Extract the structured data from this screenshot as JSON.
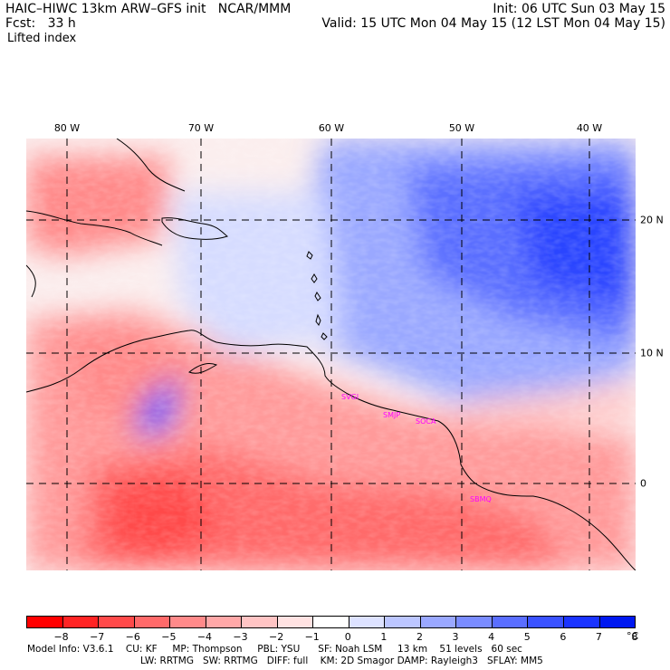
{
  "header": {
    "line1_left": "HAIC–HIWC 13km ARW–GFS init   NCAR/MMM",
    "line1_right": "Init: 06 UTC Sun 03 May 15",
    "line2_left": "Fcst:   33 h",
    "line2_right": "Valid: 15 UTC Mon 04 May 15 (12 LST Mon 04 May 15)",
    "field_name": "Lifted index"
  },
  "map": {
    "longitude_labels": [
      "80 W",
      "70 W",
      "60 W",
      "50 W",
      "40 W"
    ],
    "longitudes": [
      -80,
      -70,
      -60,
      -50,
      -40
    ],
    "latitude_labels": [
      "20 N",
      "10 N",
      "0"
    ],
    "latitudes": [
      20,
      10,
      0
    ],
    "lon_range": [
      -83,
      -36.5
    ],
    "lat_range": [
      -6.5,
      26.5
    ],
    "station_labels": [
      "SVGI",
      "SMJP",
      "SOCA",
      "SBMQ"
    ]
  },
  "colorbar": {
    "colors": [
      "#ff0000",
      "#ff2424",
      "#ff4a4a",
      "#ff6a6a",
      "#ff8a8a",
      "#ffa8a8",
      "#ffc4c4",
      "#ffe2e2",
      "#ffffff",
      "#dde2ff",
      "#bcc6ff",
      "#9aa8ff",
      "#7a8cff",
      "#5a6eff",
      "#3a52ff",
      "#1a34ff",
      "#0018f0"
    ],
    "tick_labels": [
      "−8",
      "−7",
      "−6",
      "−5",
      "−4",
      "−3",
      "−2",
      "−1",
      "0",
      "1",
      "2",
      "3",
      "4",
      "5",
      "6",
      "7",
      "8"
    ],
    "unit": "°C"
  },
  "footer": {
    "line1": "Model Info: V3.6.1    CU: KF     MP: Thompson     PBL: YSU      SF: Noah LSM     13 km    51 levels   60 sec",
    "line2": "LW: RRTMG   SW: RRTMG   DIFF: full    KM: 2D Smagor DAMP: Rayleigh3   SFLAY: MM5"
  }
}
